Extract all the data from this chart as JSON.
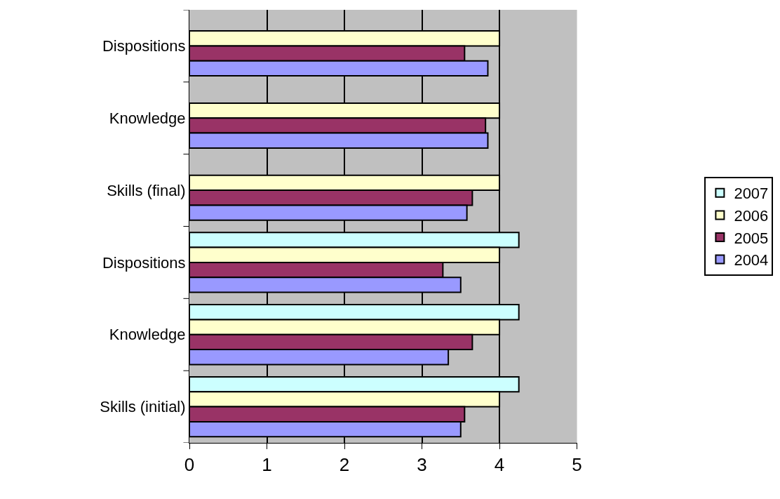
{
  "chart_data": {
    "type": "bar",
    "orientation": "horizontal",
    "categories": [
      "Dispositions",
      "Knowledge",
      "Skills (final)",
      "Dispositions",
      "Knowledge",
      "Skills (initial)"
    ],
    "series": [
      {
        "name": "2007",
        "color": "#ccffff",
        "values": [
          null,
          null,
          null,
          4.25,
          4.25,
          4.25
        ]
      },
      {
        "name": "2006",
        "color": "#ffffcc",
        "values": [
          4.0,
          4.0,
          4.0,
          4.0,
          4.0,
          4.0
        ]
      },
      {
        "name": "2005",
        "color": "#993366",
        "values": [
          3.55,
          3.82,
          3.65,
          3.27,
          3.65,
          3.55
        ]
      },
      {
        "name": "2004",
        "color": "#9999ff",
        "values": [
          3.85,
          3.85,
          3.58,
          3.5,
          3.34,
          3.5
        ]
      }
    ],
    "xlim": [
      0,
      5
    ],
    "xticks": [
      0,
      1,
      2,
      3,
      4,
      5
    ],
    "grid": "x",
    "legend": "right"
  }
}
